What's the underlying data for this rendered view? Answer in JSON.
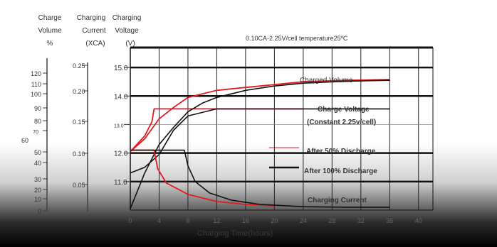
{
  "chart_data": {
    "type": "line",
    "header": {
      "left_col": [
        "Charge",
        "Volume",
        "%"
      ],
      "mid_col": [
        "Charging",
        "Current",
        "(XCA)"
      ],
      "right_col": [
        "Charging",
        "Voltage",
        "(V)"
      ]
    },
    "subtitle": "0.10CA-2.25V/cell  temperature25ºC",
    "xlabel": "Charging Time(hours)",
    "x_ticks": [
      "0",
      "4",
      "8",
      "12",
      "16",
      "20",
      "24",
      "28",
      "32",
      "36",
      "40"
    ],
    "xlim": [
      0,
      42
    ],
    "voltage_axis": {
      "ticks": [
        "11.0",
        "12.0",
        "13.0",
        "14.0",
        "15.0"
      ],
      "ylim": [
        10,
        15.7
      ]
    },
    "current_axis": {
      "ticks": [
        "0.05",
        "0.10",
        "0.15",
        "0.20",
        "0.25"
      ]
    },
    "volume_axis": {
      "ticks": [
        "0",
        "10",
        "20",
        "30",
        "40",
        "50",
        "60",
        "70",
        "80",
        "90",
        "100",
        "110",
        "120"
      ]
    },
    "legend": {
      "red": "After 50% Discharge",
      "black": "After 100% Discharge"
    },
    "annotations": {
      "charged_volume": "Charged Volume",
      "charge_voltage": "Charge Voltage",
      "constant": "(Constant 2.25v/cell)",
      "charging_current": "Charging Current"
    },
    "series": [
      {
        "name": "After 50% Discharge",
        "curve": "Charge Voltage",
        "color": "#e11b22",
        "x": [
          0,
          2,
          3,
          3.3,
          24
        ],
        "y": [
          12.05,
          12.6,
          13.1,
          13.55,
          13.55
        ]
      },
      {
        "name": "After 100% Discharge",
        "curve": "Charge Voltage",
        "color": "#111111",
        "x": [
          0,
          2,
          4,
          6,
          8,
          12,
          16,
          20,
          24,
          30,
          36
        ],
        "y": [
          11.3,
          11.5,
          11.95,
          12.8,
          13.3,
          13.55,
          13.55,
          13.55,
          13.55,
          13.55,
          13.55
        ]
      },
      {
        "name": "After 50% Discharge",
        "curve": "Charged Volume",
        "color": "#e11b22",
        "x": [
          0,
          2,
          4,
          6,
          8,
          12,
          16,
          20,
          24,
          30,
          36
        ],
        "y": [
          12.05,
          12.5,
          13.2,
          13.6,
          13.95,
          14.2,
          14.3,
          14.4,
          14.5,
          14.55,
          14.58
        ]
      },
      {
        "name": "After 100% Discharge",
        "curve": "Charged Volume",
        "color": "#111111",
        "x": [
          0,
          2,
          4,
          6,
          8,
          10,
          12,
          16,
          20,
          24,
          30,
          36
        ],
        "y": [
          10.05,
          11.3,
          12.3,
          12.9,
          13.45,
          13.75,
          13.95,
          14.2,
          14.35,
          14.45,
          14.52,
          14.55
        ]
      },
      {
        "name": "After 50% Discharge",
        "curve": "Charging Current",
        "color": "#e11b22",
        "x": [
          0,
          3.3,
          3.8,
          5,
          8,
          12,
          16,
          20
        ],
        "y": [
          12.1,
          12.1,
          11.45,
          10.95,
          10.55,
          10.3,
          10.2,
          10.15
        ]
      },
      {
        "name": "After 100% Discharge",
        "curve": "Charging Current",
        "color": "#111111",
        "x": [
          0,
          7.5,
          8,
          9,
          11,
          14,
          18,
          24,
          30,
          36
        ],
        "y": [
          12.1,
          12.1,
          11.55,
          11.0,
          10.6,
          10.35,
          10.2,
          10.12,
          10.1,
          10.1
        ]
      }
    ]
  }
}
